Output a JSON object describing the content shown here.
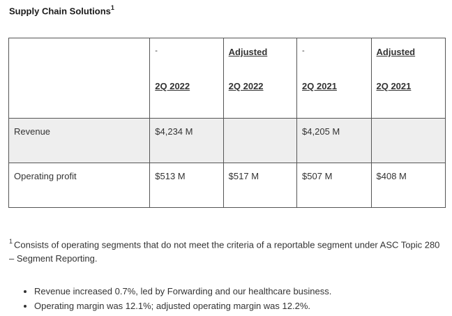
{
  "title": "Supply Chain Solutions",
  "title_sup": "1",
  "table": {
    "headers": [
      {
        "top": "",
        "bottom": ""
      },
      {
        "top": "-",
        "bottom": "2Q 2022"
      },
      {
        "top": "Adjusted",
        "bottom": "2Q 2022"
      },
      {
        "top": "-",
        "bottom": "2Q 2021"
      },
      {
        "top": "Adjusted",
        "bottom": "2Q 2021"
      }
    ],
    "rows": [
      {
        "label": "Revenue",
        "cells": [
          "$4,234 M",
          "",
          "$4,205 M",
          ""
        ]
      },
      {
        "label": "Operating profit",
        "cells": [
          "$513 M",
          "$517 M",
          "$507 M",
          "$408 M"
        ]
      }
    ]
  },
  "footnote": {
    "marker": "1",
    "text": "Consists of operating segments that do not meet the criteria of a reportable segment under ASC Topic 280 – Segment Reporting."
  },
  "bullets": [
    "Revenue increased 0.7%, led by Forwarding and our healthcare business.",
    "Operating margin was 12.1%; adjusted operating margin was 12.2%."
  ]
}
